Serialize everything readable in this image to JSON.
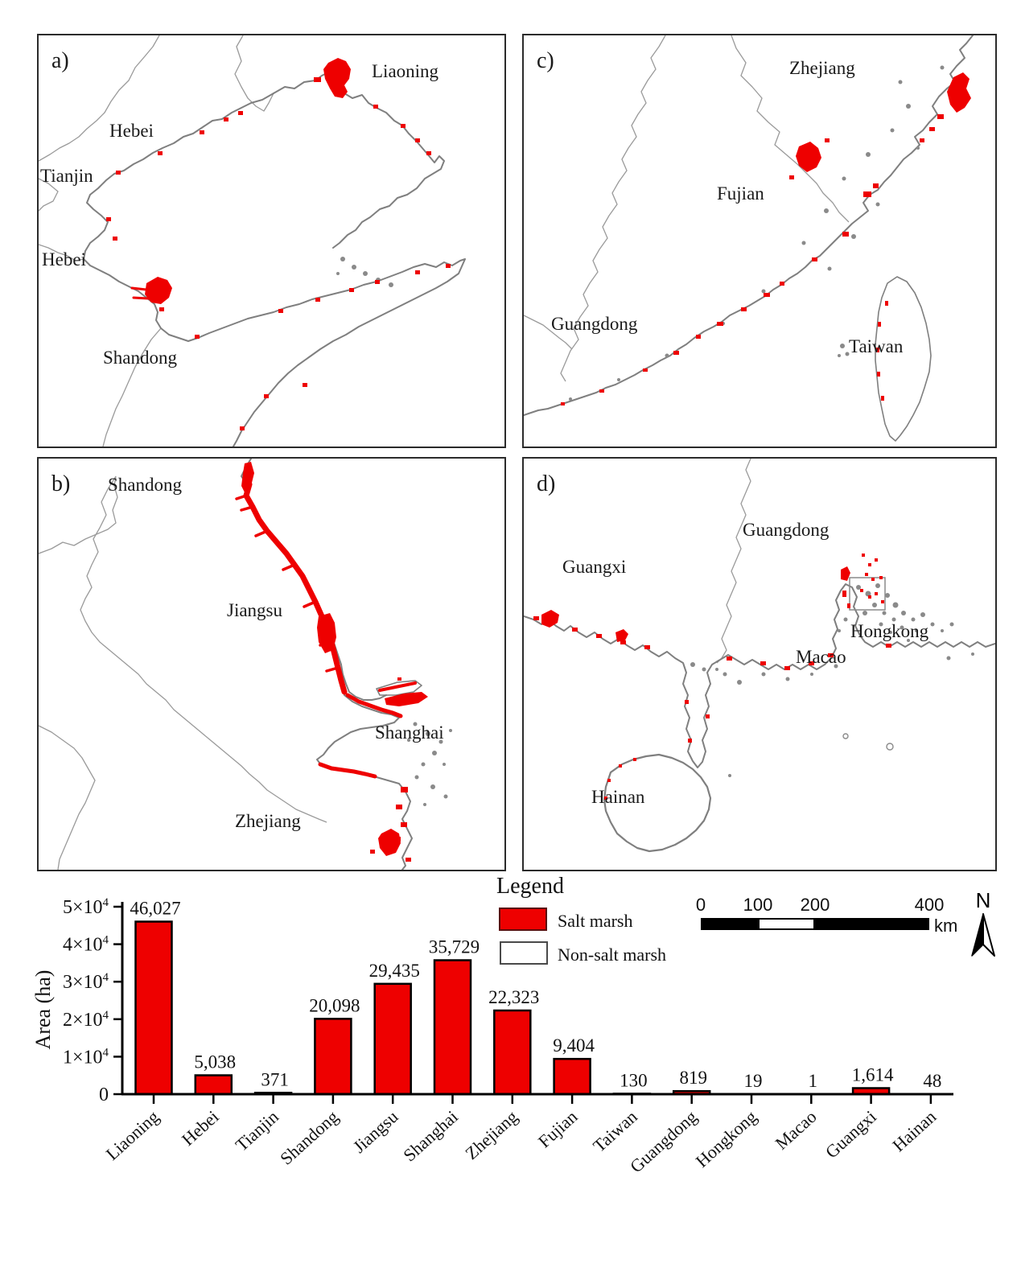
{
  "colors": {
    "salt_marsh": "#ee0000",
    "coastline_gray": "#7f7f7f",
    "boundary_gray": "#9a9a9a"
  },
  "panels": [
    {
      "letter": "a)",
      "labels": [
        "Hebei",
        "Tianjin",
        "Hebei",
        "Liaoning",
        "Shandong"
      ]
    },
    {
      "letter": "b)",
      "labels": [
        "Shandong",
        "Jiangsu",
        "Shanghai",
        "Zhejiang"
      ]
    },
    {
      "letter": "c)",
      "labels": [
        "Zhejiang",
        "Fujian",
        "Guangdong",
        "Taiwan"
      ]
    },
    {
      "letter": "d)",
      "labels": [
        "Guangxi",
        "Guangdong",
        "Hongkong",
        "Macao",
        "Hainan"
      ]
    }
  ],
  "legend": {
    "title": "Legend",
    "items": [
      {
        "label": "Salt marsh",
        "color": "#ee0000"
      },
      {
        "label": "Non-salt marsh",
        "color": "#ffffff"
      }
    ]
  },
  "scale_bar": {
    "tick_labels": [
      "0",
      "100",
      "200",
      "400"
    ],
    "unit": "km"
  },
  "north_arrow": {
    "label": "N"
  },
  "chart_data": {
    "type": "bar",
    "title": "",
    "xlabel": "",
    "ylabel": "Area (ha)",
    "ylim": [
      0,
      50000
    ],
    "categories": [
      "Liaoning",
      "Hebei",
      "Tianjin",
      "Shandong",
      "Jiangsu",
      "Shanghai",
      "Zhejiang",
      "Fujian",
      "Taiwan",
      "Guangdong",
      "Hongkong",
      "Macao",
      "Guangxi",
      "Hainan"
    ],
    "values": [
      46027,
      5038,
      371,
      20098,
      29435,
      35729,
      22323,
      9404,
      130,
      819,
      19,
      1,
      1614,
      48
    ],
    "value_labels": [
      "46,027",
      "5,038",
      "371",
      "20,098",
      "29,435",
      "35,729",
      "22,323",
      "9,404",
      "130",
      "819",
      "19",
      "1",
      "1,614",
      "48"
    ],
    "yticks": [
      {
        "text": "0",
        "sup": ""
      },
      {
        "text": "1×10",
        "sup": "4"
      },
      {
        "text": "2×10",
        "sup": "4"
      },
      {
        "text": "3×10",
        "sup": "4"
      },
      {
        "text": "4×10",
        "sup": "4"
      },
      {
        "text": "5×10",
        "sup": "4"
      }
    ],
    "bar_color": "#ee0000",
    "bar_edge_color": "#000000",
    "grid": false,
    "legend_position": "top-center"
  }
}
